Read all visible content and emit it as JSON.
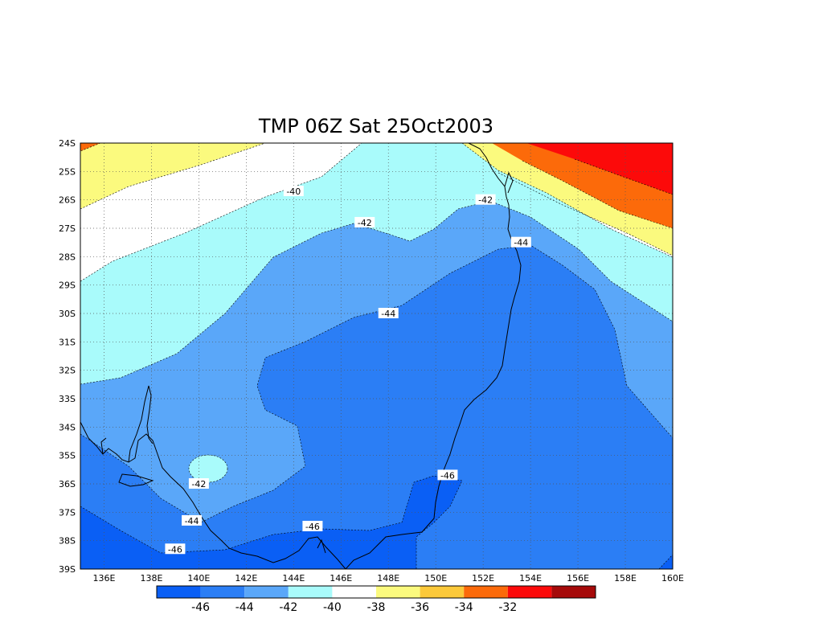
{
  "title": "TMP 06Z Sat 25Oct2003",
  "map": {
    "lat_labels": [
      "24S",
      "25S",
      "26S",
      "27S",
      "28S",
      "29S",
      "30S",
      "31S",
      "32S",
      "33S",
      "34S",
      "35S",
      "36S",
      "37S",
      "38S",
      "39S"
    ],
    "lon_labels": [
      "136E",
      "138E",
      "140E",
      "142E",
      "144E",
      "146E",
      "148E",
      "150E",
      "152E",
      "154E",
      "156E",
      "158E",
      "160E"
    ],
    "lat_range": [
      -39,
      -24
    ],
    "lon_range": [
      135,
      160
    ],
    "grid": "dotted",
    "contour_labels": [
      {
        "text": "-40",
        "lon": 144.0,
        "lat": -25.7
      },
      {
        "text": "-42",
        "lon": 147.0,
        "lat": -26.8
      },
      {
        "text": "-42",
        "lon": 152.1,
        "lat": -26.0
      },
      {
        "text": "-44",
        "lon": 153.6,
        "lat": -27.5
      },
      {
        "text": "-44",
        "lon": 148.0,
        "lat": -30.0
      },
      {
        "text": "-46",
        "lon": 150.5,
        "lat": -35.7
      },
      {
        "text": "-42",
        "lon": 140.0,
        "lat": -36.0
      },
      {
        "text": "-44",
        "lon": 139.7,
        "lat": -37.3
      },
      {
        "text": "-46",
        "lon": 144.8,
        "lat": -37.5
      },
      {
        "text": "-46",
        "lon": 139.0,
        "lat": -38.3
      }
    ]
  },
  "colorbar": {
    "colors": [
      "#0a5ff5",
      "#2b7ef5",
      "#5aa7f9",
      "#a9fbfb",
      "#ffffff",
      "#fbfa7e",
      "#fcc93a",
      "#fc6a0a",
      "#fc0a0a",
      "#a60a0a"
    ],
    "tick_labels": [
      "-46",
      "-44",
      "-42",
      "-40",
      "-38",
      "-36",
      "-34",
      "-32"
    ]
  }
}
